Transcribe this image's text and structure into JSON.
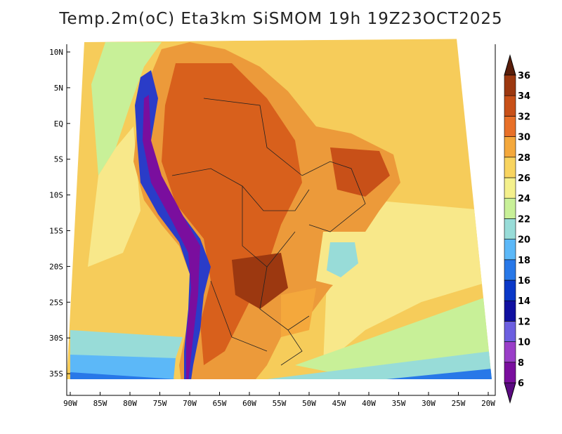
{
  "title": "Temp.2m(oC) Eta3km SiSMOM 19h 19Z23OCT2025",
  "map": {
    "lon_range": [
      -90,
      -20
    ],
    "lat_range": [
      -37,
      12
    ],
    "lat_labels": [
      "10N",
      "5N",
      "EQ",
      "5S",
      "10S",
      "15S",
      "20S",
      "25S",
      "30S",
      "35S"
    ],
    "lat_values": [
      10,
      5,
      0,
      -5,
      -10,
      -15,
      -20,
      -25,
      -30,
      -35
    ],
    "lon_labels": [
      "90W",
      "85W",
      "80W",
      "75W",
      "70W",
      "65W",
      "60W",
      "55W",
      "50W",
      "45W",
      "40W",
      "35W",
      "30W",
      "25W",
      "20W"
    ],
    "lon_values": [
      -90,
      -85,
      -80,
      -75,
      -70,
      -65,
      -60,
      -55,
      -50,
      -45,
      -40,
      -35,
      -30,
      -25,
      -20
    ]
  },
  "colorbar": {
    "levels": [
      6,
      8,
      10,
      12,
      14,
      16,
      18,
      20,
      22,
      24,
      26,
      28,
      30,
      32,
      34,
      36
    ],
    "labels": [
      "6",
      "8",
      "10",
      "12",
      "14",
      "16",
      "18",
      "20",
      "22",
      "24",
      "26",
      "28",
      "30",
      "32",
      "34",
      "36"
    ],
    "colors": [
      "#7a0e9e",
      "#9a3ec8",
      "#6c5fe0",
      "#1010a0",
      "#0a38c8",
      "#2878e8",
      "#5cb8f8",
      "#98dcd8",
      "#c8f098",
      "#f4f08c",
      "#f8d460",
      "#f4a83c",
      "#e87028",
      "#c85018",
      "#9c3810",
      "#6a2208"
    ],
    "low_color": "#5a0a80",
    "high_color": "#5a1e0a"
  },
  "colors": {
    "ocean_warm": "#f6cc5a",
    "ocean_mid": "#f8e88a",
    "ocean_cool": "#c8f098",
    "land_hot": "#d8601c",
    "land_warm": "#ec9a3a",
    "andes": "#2a3cc8"
  }
}
